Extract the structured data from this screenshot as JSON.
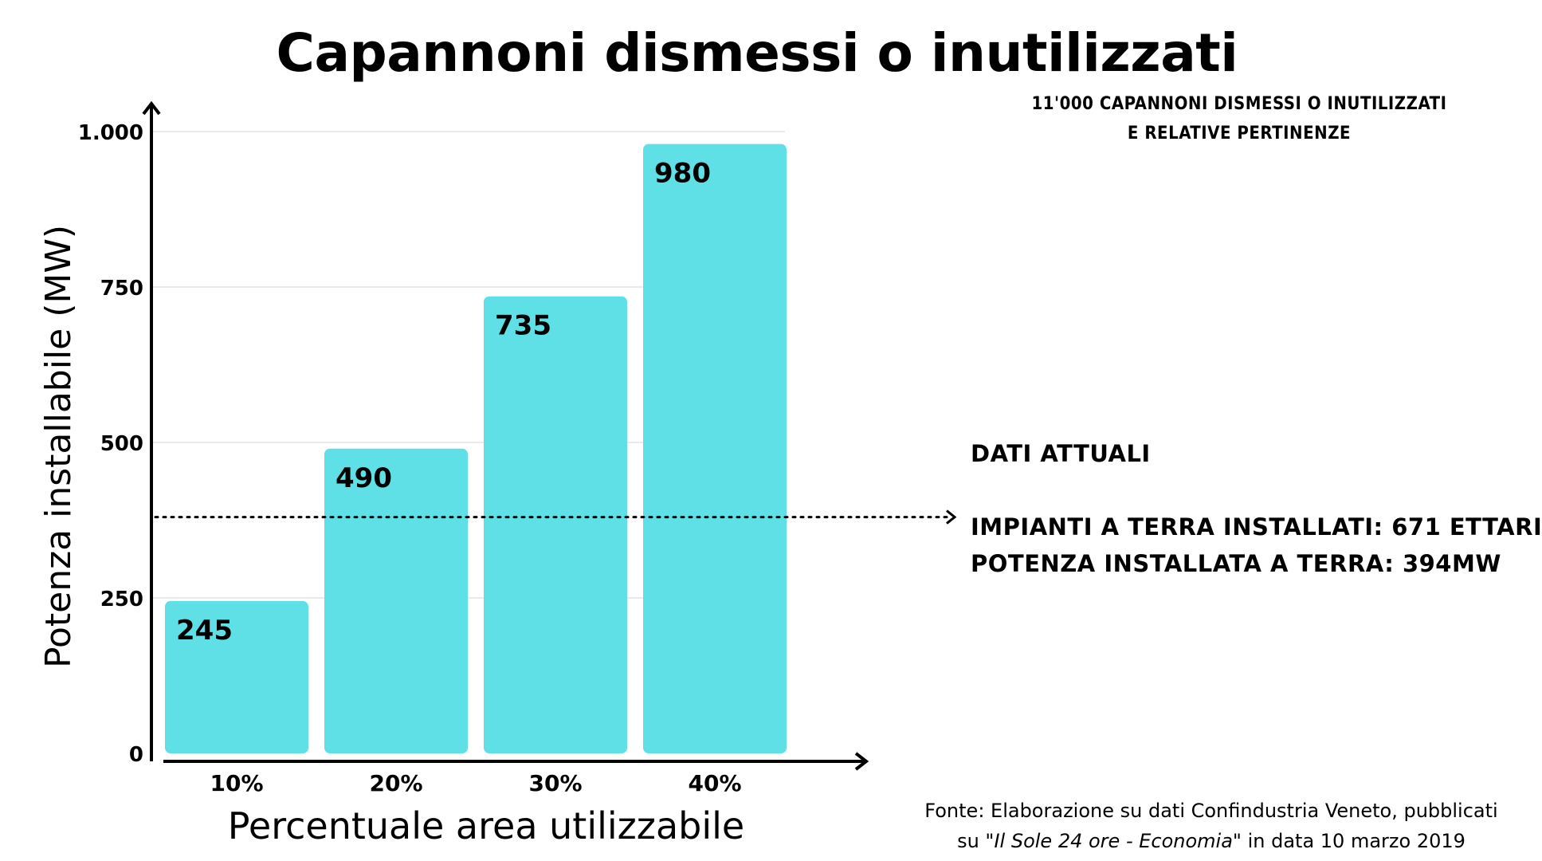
{
  "chart_data": {
    "type": "bar",
    "title": "Capannoni dismessi o inutilizzati",
    "subtitle_lines": [
      "11'000 CAPANNONI DISMESSI O INUTILIZZATI",
      "E RELATIVE PERTINENZE"
    ],
    "categories": [
      "10%",
      "20%",
      "30%",
      "40%"
    ],
    "values": [
      245,
      490,
      735,
      980
    ],
    "value_labels": [
      "245",
      "490",
      "735",
      "980"
    ],
    "xlabel": "Percentuale area utilizzabile",
    "ylabel": "Potenza installabile (MW)",
    "ylim": [
      0,
      1000
    ],
    "y_ticks": [
      0,
      250,
      500,
      750,
      1000
    ],
    "y_tick_labels": [
      "0",
      "250",
      "500",
      "750",
      "1.000"
    ],
    "grid": true,
    "bar_color": "#5EE0E6",
    "reference_line": {
      "value": 380,
      "style": "dotted"
    }
  },
  "notes": {
    "heading": "DATI ATTUALI",
    "line1": "IMPIANTI A TERRA INSTALLATI: 671 ETTARI",
    "line2": "POTENZA INSTALLATA A TERRA: 394MW"
  },
  "source": {
    "line1": "Fonte: Elaborazione su dati Confindustria Veneto, pubblicati",
    "line2_prefix": "su \"",
    "line2_italic": "Il Sole 24 ore - Economia",
    "line2_suffix": "\" in data 10 marzo 2019"
  }
}
